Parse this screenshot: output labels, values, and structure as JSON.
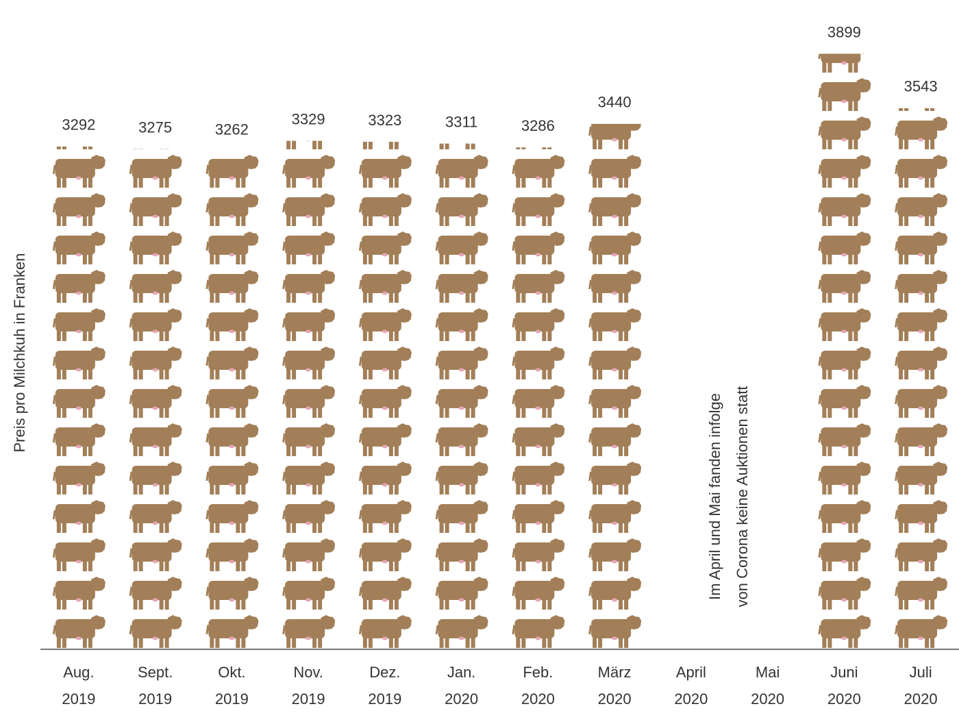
{
  "chart_data": {
    "type": "pictogram",
    "y_label": "Preis pro Milchkuh in Franken",
    "categories": [
      [
        "Aug.",
        "2019"
      ],
      [
        "Sept.",
        "2019"
      ],
      [
        "Okt.",
        "2019"
      ],
      [
        "Nov.",
        "2019"
      ],
      [
        "Dez.",
        "2019"
      ],
      [
        "Jan.",
        "2020"
      ],
      [
        "Feb.",
        "2020"
      ],
      [
        "März",
        "2020"
      ],
      [
        "April",
        "2020"
      ],
      [
        "Mai",
        "2020"
      ],
      [
        "Juni",
        "2020"
      ],
      [
        "Juli",
        "2020"
      ]
    ],
    "values": [
      3292,
      3275,
      3262,
      3329,
      3323,
      3311,
      3286,
      3440,
      null,
      null,
      3899,
      3543
    ],
    "color": "#a27f58",
    "ylim": [
      0,
      4000
    ],
    "annotation": [
      "Im April und Mai fanden infolge",
      "von Corona keine Auktionen statt"
    ]
  }
}
